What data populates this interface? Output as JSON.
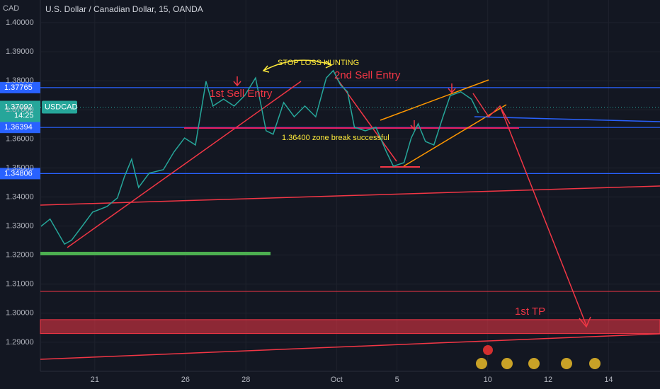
{
  "chart_data": {
    "type": "line",
    "title": "U.S. Dollar / Canadian Dollar, 15, OANDA",
    "currency": "CAD",
    "symbol": "USDCAD",
    "countdown": "14:25",
    "series": [
      {
        "name": "USDCAD",
        "color": "#26a69a",
        "x": [
          -1.78,
          -1.48,
          -1.0,
          -0.77,
          -0.42,
          -0.07,
          0.4,
          0.75,
          0.98,
          1.22,
          1.45,
          1.8,
          2.27,
          2.62,
          2.97,
          3.33,
          3.68,
          3.91,
          4.26,
          4.61,
          4.96,
          5.32,
          5.67,
          5.9,
          6.25,
          6.6,
          6.95,
          7.31,
          7.66,
          7.89,
          8.13,
          8.36,
          8.59,
          8.95,
          9.3,
          9.65,
          9.88,
          10.23,
          10.47,
          10.7,
          10.94,
          11.22,
          11.52,
          11.76,
          12.11,
          12.46,
          12.69
        ],
        "values": [
          1.3299,
          1.3324,
          1.3238,
          1.3251,
          1.3299,
          1.3348,
          1.3367,
          1.3397,
          1.347,
          1.353,
          1.3433,
          1.3482,
          1.3494,
          1.3555,
          1.3603,
          1.3579,
          1.3798,
          1.3713,
          1.3737,
          1.3713,
          1.3749,
          1.381,
          1.3628,
          1.3616,
          1.3725,
          1.3676,
          1.3713,
          1.3676,
          1.381,
          1.3835,
          1.3786,
          1.3762,
          1.364,
          1.3628,
          1.364,
          1.3555,
          1.3506,
          1.3518,
          1.3603,
          1.3652,
          1.3591,
          1.3579,
          1.3676,
          1.3749,
          1.3762,
          1.3737,
          1.3689
        ]
      }
    ],
    "current_price": 1.37092,
    "levels": [
      1.37765,
      1.36394,
      1.34806
    ],
    "level_color": "#2962ff",
    "tp_zone": [
      1.293,
      1.2978
    ],
    "annotations": [
      "1st Sell Entry",
      "2nd Sell Entry",
      "STOP LOSS HUNTING",
      "1.36400 zone break successful",
      "1st TP"
    ],
    "xlim": [
      -1.8,
      18.7
    ],
    "xticks": [
      {
        "value": 0,
        "label": "21"
      },
      {
        "value": 3,
        "label": "26"
      },
      {
        "value": 5,
        "label": "28"
      },
      {
        "value": 8,
        "label": "Oct"
      },
      {
        "value": 10,
        "label": "5"
      },
      {
        "value": 13,
        "label": "10"
      },
      {
        "value": 15,
        "label": "12"
      },
      {
        "value": 17,
        "label": "14"
      }
    ],
    "ylim": [
      1.28,
      1.4078
    ],
    "yticks": [
      {
        "value": 1.29,
        "label": "1.29000"
      },
      {
        "value": 1.3,
        "label": "1.30000"
      },
      {
        "value": 1.31,
        "label": "1.31000"
      },
      {
        "value": 1.32,
        "label": "1.32000"
      },
      {
        "value": 1.33,
        "label": "1.33000"
      },
      {
        "value": 1.34,
        "label": "1.34000"
      },
      {
        "value": 1.35,
        "label": "1.35000"
      },
      {
        "value": 1.36,
        "label": "1.36000"
      },
      {
        "value": 1.37,
        "label": "1.37000"
      },
      {
        "value": 1.38,
        "label": "1.38000"
      },
      {
        "value": 1.39,
        "label": "1.39000"
      },
      {
        "value": 1.4,
        "label": "1.40000"
      }
    ],
    "grid": true
  }
}
